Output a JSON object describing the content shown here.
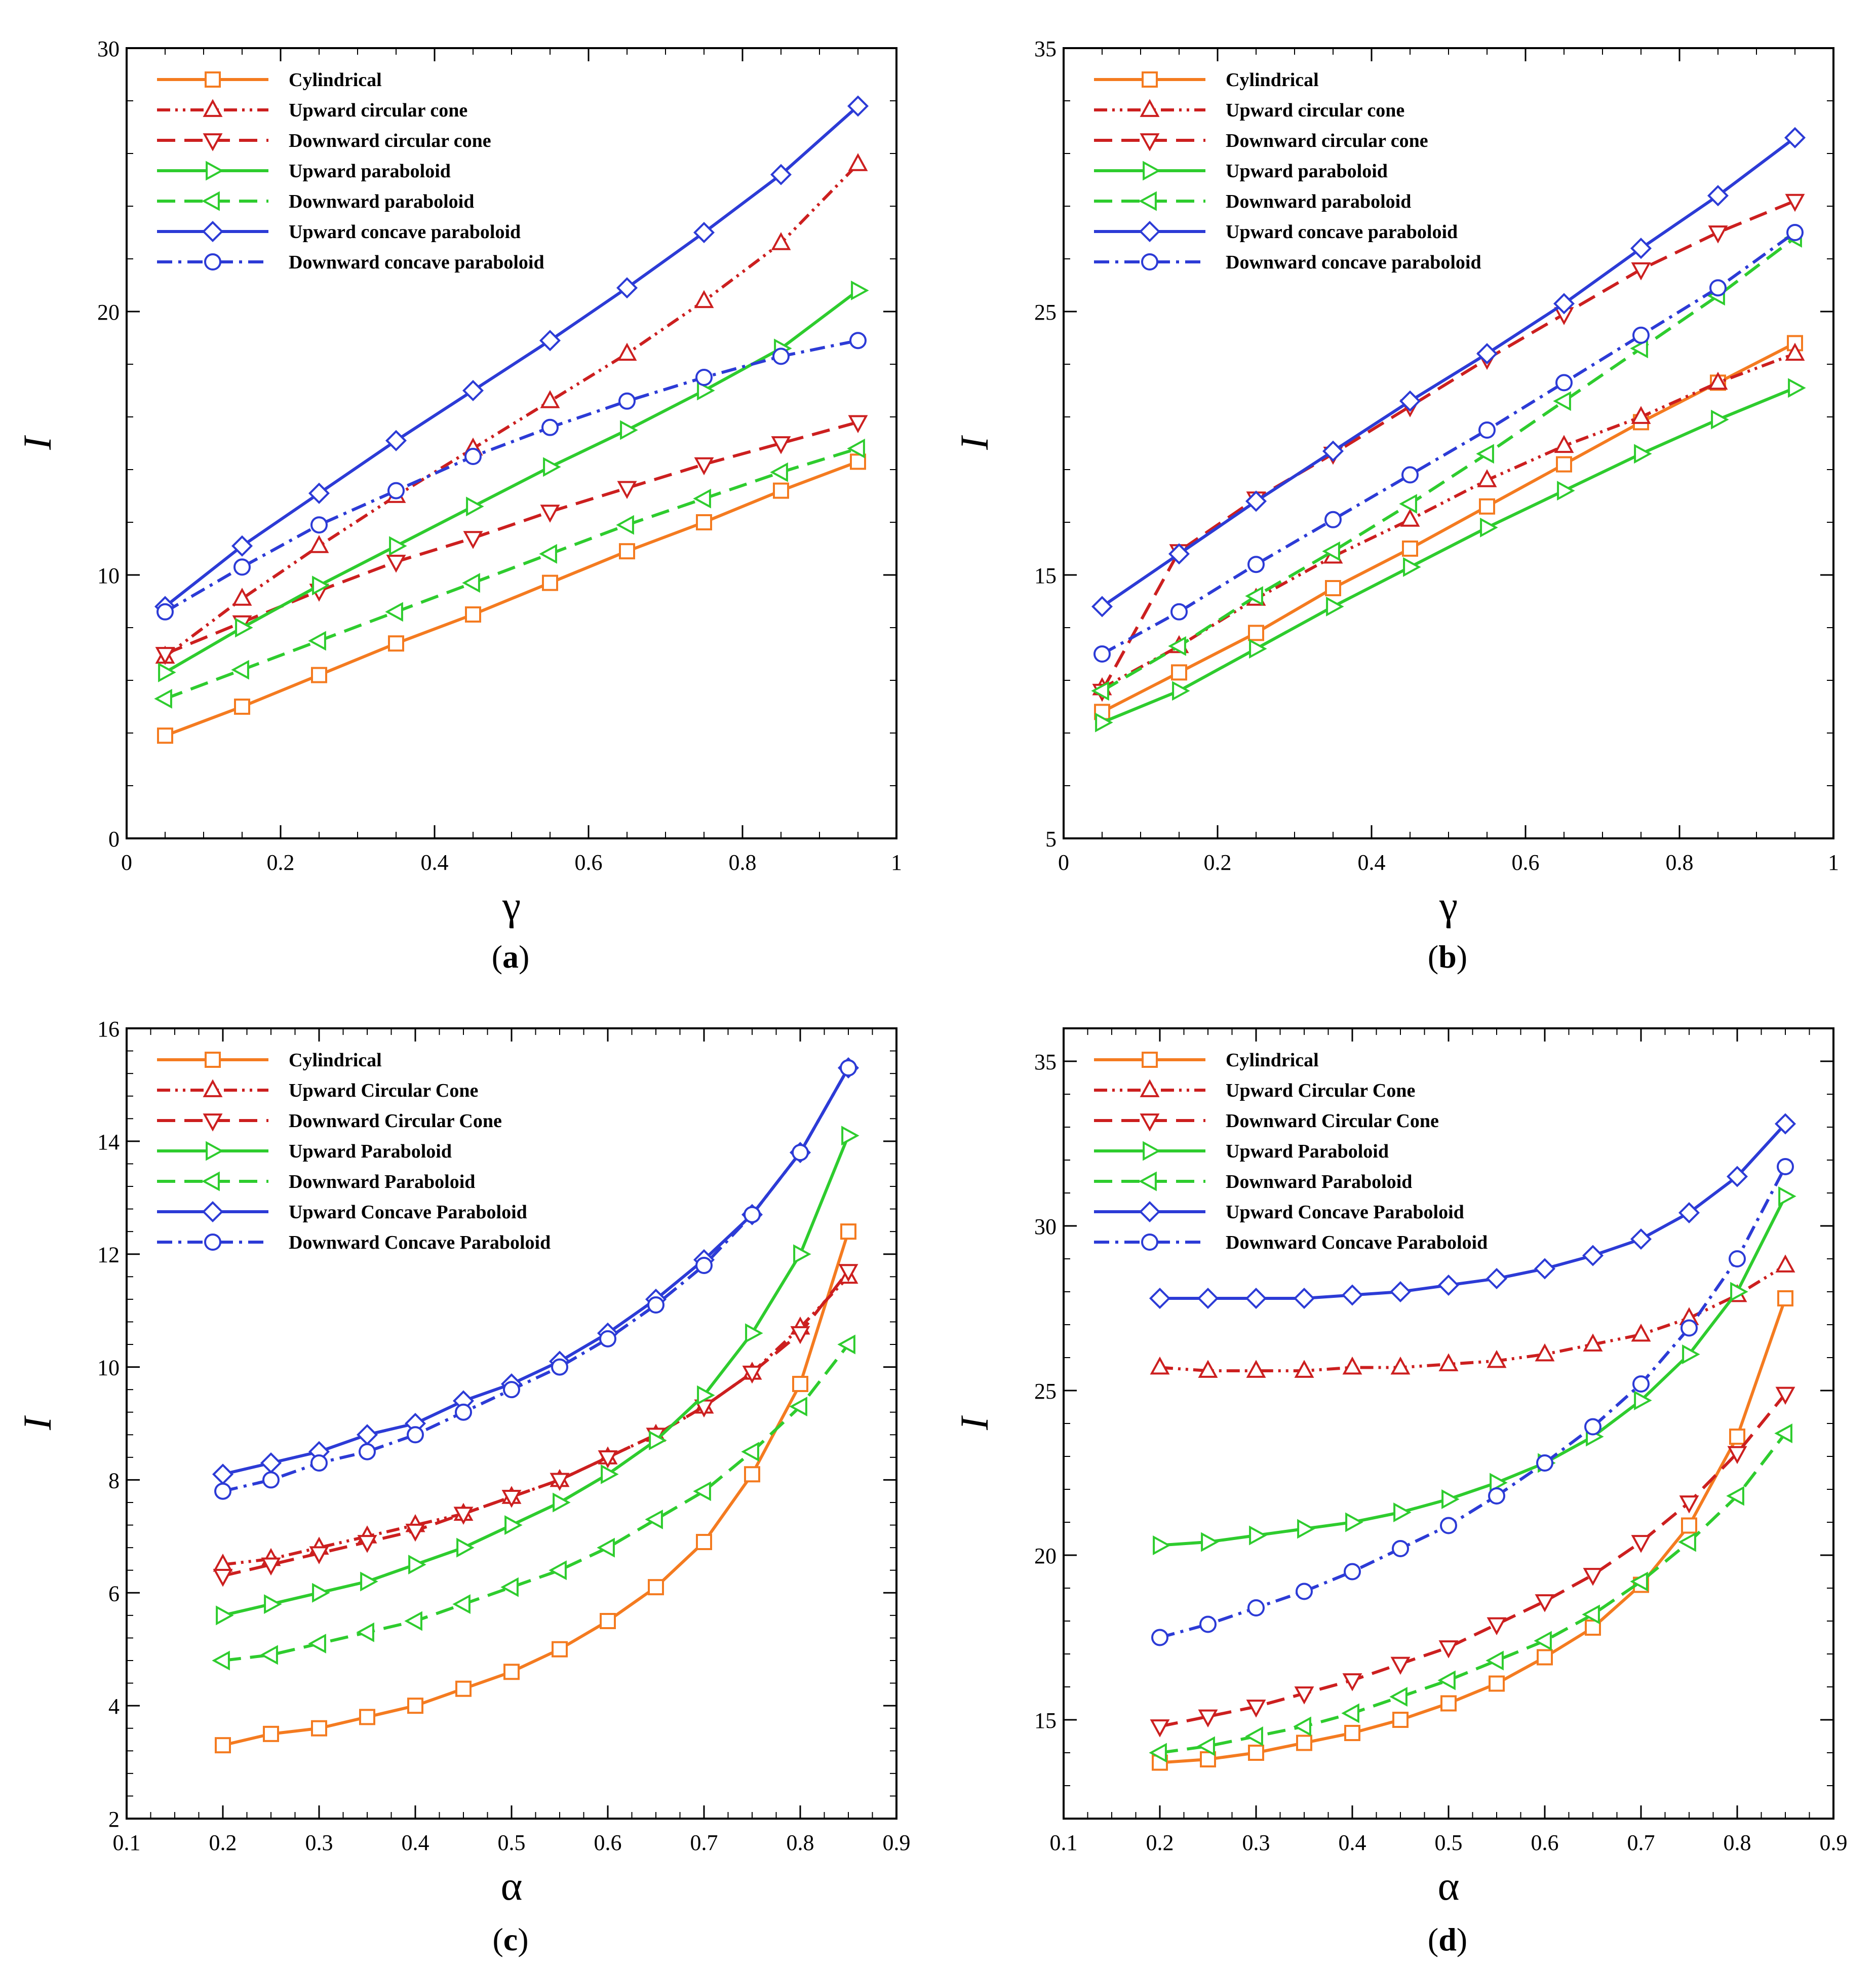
{
  "figure": {
    "colors": {
      "cylindrical": "#f47b20",
      "upward_cone": "#cc1f1f",
      "downward_cone": "#cc1f1f",
      "upward_parab": "#2ecc2e",
      "downward_parab": "#2ecc2e",
      "upward_concave": "#2c3bd6",
      "downward_concave": "#2c3bd6"
    }
  },
  "chart_data": [
    {
      "type": "line",
      "panel_label": "(a)",
      "panel_letter": "a",
      "xlabel": "γ",
      "ylabel": "I",
      "xlim": [
        0,
        1
      ],
      "ylim": [
        0,
        30
      ],
      "xticks": [
        0,
        0.2,
        0.4,
        0.6,
        0.8,
        1
      ],
      "xtick_labels": [
        "0",
        "0.2",
        "0.4",
        "0.6",
        "0.8",
        "1"
      ],
      "yticks": [
        0,
        10,
        20,
        30
      ],
      "ytick_labels": [
        "0",
        "10",
        "20",
        "30"
      ],
      "legend_position": "top-left",
      "x": [
        0.05,
        0.15,
        0.25,
        0.35,
        0.45,
        0.55,
        0.65,
        0.75,
        0.85,
        0.95
      ],
      "series": [
        {
          "name": "Cylindrical",
          "key": "cylindrical",
          "marker": "square",
          "dash": "solid",
          "values": [
            3.9,
            5.0,
            6.2,
            7.4,
            8.5,
            9.7,
            10.9,
            12.0,
            13.2,
            14.3
          ]
        },
        {
          "name": "Upward circular cone",
          "key": "upward_cone",
          "marker": "triangle-up",
          "dash": "dashdotdot",
          "values": [
            6.9,
            9.1,
            11.1,
            13.0,
            14.8,
            16.6,
            18.4,
            20.4,
            22.6,
            25.6
          ]
        },
        {
          "name": "Downward circular cone",
          "key": "downward_cone",
          "marker": "triangle-down",
          "dash": "dashed",
          "values": [
            7.0,
            8.2,
            9.4,
            10.5,
            11.4,
            12.4,
            13.3,
            14.2,
            15.0,
            15.8
          ]
        },
        {
          "name": "Upward paraboloid",
          "key": "upward_parab",
          "marker": "triangle-right",
          "dash": "solid",
          "values": [
            6.3,
            8.0,
            9.6,
            11.1,
            12.6,
            14.1,
            15.5,
            17.0,
            18.6,
            20.8
          ]
        },
        {
          "name": "Downward paraboloid",
          "key": "downward_parab",
          "marker": "triangle-left",
          "dash": "dashed",
          "values": [
            5.3,
            6.4,
            7.5,
            8.6,
            9.7,
            10.8,
            11.9,
            12.9,
            13.9,
            14.8
          ]
        },
        {
          "name": "Upward concave paraboloid",
          "key": "upward_concave",
          "marker": "diamond",
          "dash": "solid",
          "values": [
            8.8,
            11.1,
            13.1,
            15.1,
            17.0,
            18.9,
            20.9,
            23.0,
            25.2,
            27.8
          ]
        },
        {
          "name": "Downward concave paraboloid",
          "key": "downward_concave",
          "marker": "circle",
          "dash": "dashdot",
          "values": [
            8.6,
            10.3,
            11.9,
            13.2,
            14.5,
            15.6,
            16.6,
            17.5,
            18.3,
            18.9
          ]
        }
      ]
    },
    {
      "type": "line",
      "panel_label": "(b)",
      "panel_letter": "b",
      "xlabel": "γ",
      "ylabel": "I",
      "xlim": [
        0,
        1
      ],
      "ylim": [
        5,
        35
      ],
      "xticks": [
        0,
        0.2,
        0.4,
        0.6,
        0.8,
        1
      ],
      "xtick_labels": [
        "0",
        "0.2",
        "0.4",
        "0.6",
        "0.8",
        "1"
      ],
      "yticks": [
        5,
        15,
        25,
        35
      ],
      "ytick_labels": [
        "5",
        "15",
        "25",
        "35"
      ],
      "legend_position": "top-left",
      "x": [
        0.05,
        0.15,
        0.25,
        0.35,
        0.45,
        0.55,
        0.65,
        0.75,
        0.85,
        0.95
      ],
      "series": [
        {
          "name": "Cylindrical",
          "key": "cylindrical",
          "marker": "square",
          "dash": "solid",
          "values": [
            9.8,
            11.3,
            12.8,
            14.5,
            16.0,
            17.6,
            19.2,
            20.8,
            22.3,
            23.8
          ]
        },
        {
          "name": "Upward circular cone",
          "key": "upward_cone",
          "marker": "triangle-up",
          "dash": "dashdotdot",
          "values": [
            10.7,
            12.3,
            14.1,
            15.7,
            17.1,
            18.6,
            19.9,
            21.0,
            22.3,
            23.4
          ]
        },
        {
          "name": "Downward circular cone",
          "key": "downward_cone",
          "marker": "triangle-down",
          "dash": "dashed",
          "values": [
            10.6,
            15.9,
            17.9,
            19.6,
            21.4,
            23.2,
            24.9,
            26.6,
            28.0,
            29.2
          ]
        },
        {
          "name": "Upward paraboloid",
          "key": "upward_parab",
          "marker": "triangle-right",
          "dash": "solid",
          "values": [
            9.4,
            10.6,
            12.2,
            13.8,
            15.3,
            16.8,
            18.2,
            19.6,
            20.9,
            22.1
          ]
        },
        {
          "name": "Downward paraboloid",
          "key": "downward_parab",
          "marker": "triangle-left",
          "dash": "dashed",
          "values": [
            10.6,
            12.3,
            14.2,
            15.9,
            17.7,
            19.6,
            21.6,
            23.6,
            25.6,
            27.8
          ]
        },
        {
          "name": "Upward concave paraboloid",
          "key": "upward_concave",
          "marker": "diamond",
          "dash": "solid",
          "values": [
            13.8,
            15.8,
            17.8,
            19.7,
            21.6,
            23.4,
            25.3,
            27.4,
            29.4,
            31.6
          ]
        },
        {
          "name": "Downward concave paraboloid",
          "key": "downward_concave",
          "marker": "circle",
          "dash": "dashdot",
          "values": [
            12.0,
            13.6,
            15.4,
            17.1,
            18.8,
            20.5,
            22.3,
            24.1,
            25.9,
            28.0
          ]
        }
      ]
    },
    {
      "type": "line",
      "panel_label": "(c)",
      "panel_letter": "c",
      "xlabel": "α",
      "ylabel": "I",
      "xlim": [
        0.1,
        0.9
      ],
      "ylim": [
        2,
        16
      ],
      "xticks": [
        0.1,
        0.2,
        0.3,
        0.4,
        0.5,
        0.6,
        0.7,
        0.8,
        0.9
      ],
      "xtick_labels": [
        "0.1",
        "0.2",
        "0.3",
        "0.4",
        "0.5",
        "0.6",
        "0.7",
        "0.8",
        "0.9"
      ],
      "yticks": [
        2,
        4,
        6,
        8,
        10,
        12,
        14,
        16
      ],
      "ytick_labels": [
        "2",
        "4",
        "6",
        "8",
        "10",
        "12",
        "14",
        "16"
      ],
      "legend_position": "top-left",
      "x": [
        0.2,
        0.25,
        0.3,
        0.35,
        0.4,
        0.45,
        0.5,
        0.55,
        0.6,
        0.65,
        0.7,
        0.75,
        0.8,
        0.85
      ],
      "series": [
        {
          "name": "Cylindrical",
          "key": "cylindrical",
          "marker": "square",
          "dash": "solid",
          "values": [
            3.3,
            3.5,
            3.6,
            3.8,
            4.0,
            4.3,
            4.6,
            5.0,
            5.5,
            6.1,
            6.9,
            8.1,
            9.7,
            12.4
          ]
        },
        {
          "name": "Upward Circular Cone",
          "key": "upward_cone",
          "marker": "triangle-up",
          "dash": "dashdotdot",
          "values": [
            6.5,
            6.6,
            6.8,
            7.0,
            7.2,
            7.4,
            7.7,
            8.0,
            8.4,
            8.8,
            9.3,
            9.9,
            10.7,
            11.6
          ]
        },
        {
          "name": "Downward Circular Cone",
          "key": "downward_cone",
          "marker": "triangle-down",
          "dash": "dashed",
          "values": [
            6.3,
            6.5,
            6.7,
            6.9,
            7.1,
            7.4,
            7.7,
            8.0,
            8.4,
            8.8,
            9.3,
            9.9,
            10.6,
            11.7
          ]
        },
        {
          "name": "Upward Paraboloid",
          "key": "upward_parab",
          "marker": "triangle-right",
          "dash": "solid",
          "values": [
            5.6,
            5.8,
            6.0,
            6.2,
            6.5,
            6.8,
            7.2,
            7.6,
            8.1,
            8.7,
            9.5,
            10.6,
            12.0,
            14.1
          ]
        },
        {
          "name": "Downward Paraboloid",
          "key": "downward_parab",
          "marker": "triangle-left",
          "dash": "dashed",
          "values": [
            4.8,
            4.9,
            5.1,
            5.3,
            5.5,
            5.8,
            6.1,
            6.4,
            6.8,
            7.3,
            7.8,
            8.5,
            9.3,
            10.4
          ]
        },
        {
          "name": "Upward Concave Paraboloid",
          "key": "upward_concave",
          "marker": "diamond",
          "dash": "solid",
          "values": [
            8.1,
            8.3,
            8.5,
            8.8,
            9.0,
            9.4,
            9.7,
            10.1,
            10.6,
            11.2,
            11.9,
            12.7,
            13.8,
            15.3
          ]
        },
        {
          "name": "Downward Concave Paraboloid",
          "key": "downward_concave",
          "marker": "circle",
          "dash": "dashdot",
          "values": [
            7.8,
            8.0,
            8.3,
            8.5,
            8.8,
            9.2,
            9.6,
            10.0,
            10.5,
            11.1,
            11.8,
            12.7,
            13.8,
            15.3
          ]
        }
      ]
    },
    {
      "type": "line",
      "panel_label": "(d)",
      "panel_letter": "d",
      "xlabel": "α",
      "ylabel": "I",
      "xlim": [
        0.1,
        0.9
      ],
      "ylim": [
        12,
        36
      ],
      "xticks": [
        0.1,
        0.2,
        0.3,
        0.4,
        0.5,
        0.6,
        0.7,
        0.8,
        0.9
      ],
      "xtick_labels": [
        "0.1",
        "0.2",
        "0.3",
        "0.4",
        "0.5",
        "0.6",
        "0.7",
        "0.8",
        "0.9"
      ],
      "yticks": [
        15,
        20,
        25,
        30,
        35
      ],
      "ytick_labels": [
        "15",
        "20",
        "25",
        "30",
        "35"
      ],
      "legend_position": "top-left",
      "x": [
        0.2,
        0.25,
        0.3,
        0.35,
        0.4,
        0.45,
        0.5,
        0.55,
        0.6,
        0.65,
        0.7,
        0.75,
        0.8,
        0.85
      ],
      "series": [
        {
          "name": "Cylindrical",
          "key": "cylindrical",
          "marker": "square",
          "dash": "solid",
          "values": [
            13.7,
            13.8,
            14.0,
            14.3,
            14.6,
            15.0,
            15.5,
            16.1,
            16.9,
            17.8,
            19.1,
            20.9,
            23.6,
            27.8
          ]
        },
        {
          "name": "Upward Circular Cone",
          "key": "upward_cone",
          "marker": "triangle-up",
          "dash": "dashdotdot",
          "values": [
            25.7,
            25.6,
            25.6,
            25.6,
            25.7,
            25.7,
            25.8,
            25.9,
            26.1,
            26.4,
            26.7,
            27.2,
            27.9,
            28.8
          ]
        },
        {
          "name": "Downward Circular Cone",
          "key": "downward_cone",
          "marker": "triangle-down",
          "dash": "dashed",
          "values": [
            14.8,
            15.1,
            15.4,
            15.8,
            16.2,
            16.7,
            17.2,
            17.9,
            18.6,
            19.4,
            20.4,
            21.6,
            23.1,
            24.9
          ]
        },
        {
          "name": "Upward Paraboloid",
          "key": "upward_parab",
          "marker": "triangle-right",
          "dash": "solid",
          "values": [
            20.3,
            20.4,
            20.6,
            20.8,
            21.0,
            21.3,
            21.7,
            22.2,
            22.8,
            23.6,
            24.7,
            26.1,
            28.0,
            30.9
          ]
        },
        {
          "name": "Downward Paraboloid",
          "key": "downward_parab",
          "marker": "triangle-left",
          "dash": "dashed",
          "values": [
            14.0,
            14.2,
            14.5,
            14.8,
            15.2,
            15.7,
            16.2,
            16.8,
            17.4,
            18.2,
            19.2,
            20.4,
            21.8,
            23.7
          ]
        },
        {
          "name": "Upward Concave Paraboloid",
          "key": "upward_concave",
          "marker": "diamond",
          "dash": "solid",
          "values": [
            27.8,
            27.8,
            27.8,
            27.8,
            27.9,
            28.0,
            28.2,
            28.4,
            28.7,
            29.1,
            29.6,
            30.4,
            31.5,
            33.1
          ]
        },
        {
          "name": "Downward Concave Paraboloid",
          "key": "downward_concave",
          "marker": "circle",
          "dash": "dashdot",
          "values": [
            17.5,
            17.9,
            18.4,
            18.9,
            19.5,
            20.2,
            20.9,
            21.8,
            22.8,
            23.9,
            25.2,
            26.9,
            29.0,
            31.8
          ]
        }
      ]
    }
  ]
}
